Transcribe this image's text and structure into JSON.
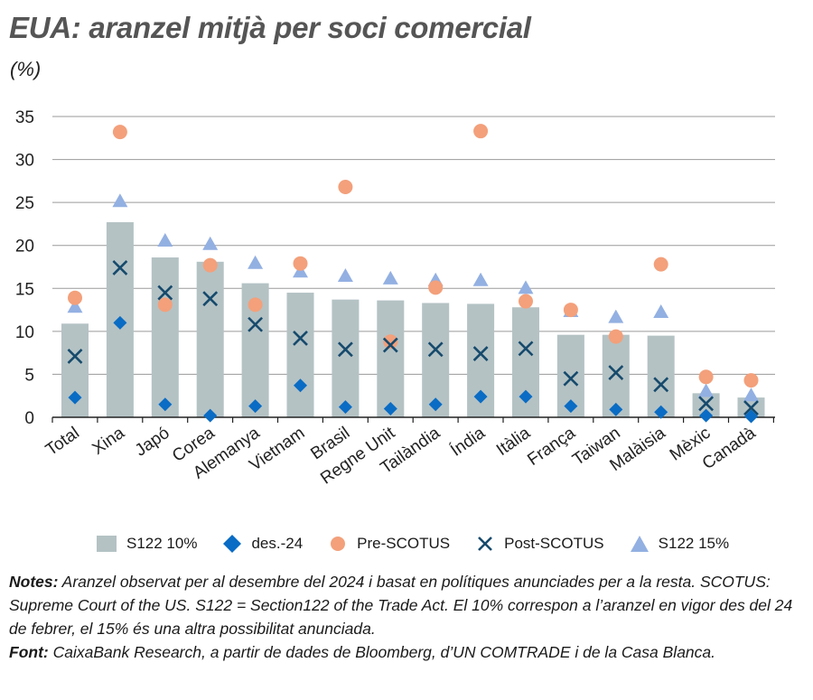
{
  "header": {
    "title": "EUA: aranzel mitjà per soci comercial",
    "subtitle": "(%)"
  },
  "colors": {
    "bar": "#b4c2c4",
    "diamond": "#0a6cc4",
    "circle": "#f3a07b",
    "cross": "#164a6c",
    "triangle": "#93b0e2",
    "grid": "#9a9a9a",
    "axis": "#222222"
  },
  "chart_data": {
    "type": "bar",
    "categories": [
      "Total",
      "Xina",
      "Japó",
      "Corea",
      "Alemanya",
      "Vietnam",
      "Brasil",
      "Regne Unit",
      "Tailàndia",
      "Índia",
      "Itàlia",
      "França",
      "Taiwan",
      "Malàisia",
      "Mèxic",
      "Canadà"
    ],
    "ylim": [
      0,
      35
    ],
    "yticks": [
      0,
      5,
      10,
      15,
      20,
      25,
      30,
      35
    ],
    "grid": true,
    "legend_position": "bottom",
    "series": [
      {
        "name": "S122 10%",
        "kind": "bar",
        "values": [
          10.9,
          22.7,
          18.6,
          18.1,
          15.6,
          14.5,
          13.7,
          13.6,
          13.3,
          13.2,
          12.8,
          9.6,
          9.6,
          9.5,
          2.8,
          2.3
        ]
      },
      {
        "name": "des.-24",
        "kind": "diamond",
        "values": [
          2.3,
          11.0,
          1.5,
          0.2,
          1.3,
          3.7,
          1.2,
          1.0,
          1.5,
          2.4,
          2.4,
          1.3,
          0.9,
          0.6,
          0.2,
          0.1
        ]
      },
      {
        "name": "Pre-SCOTUS",
        "kind": "circle",
        "values": [
          13.9,
          33.2,
          13.1,
          17.7,
          13.1,
          17.9,
          26.8,
          8.8,
          15.1,
          33.3,
          13.5,
          12.5,
          9.4,
          17.8,
          4.7,
          4.3
        ]
      },
      {
        "name": "Post-SCOTUS",
        "kind": "cross",
        "values": [
          7.1,
          17.4,
          14.5,
          13.8,
          10.8,
          9.2,
          7.9,
          8.4,
          7.9,
          7.4,
          8.0,
          4.5,
          5.2,
          3.8,
          1.6,
          1.1
        ]
      },
      {
        "name": "S122 15%",
        "kind": "triangle",
        "values": [
          12.9,
          25.2,
          20.6,
          20.2,
          18.0,
          17.0,
          16.5,
          16.2,
          16.0,
          16.0,
          15.1,
          12.4,
          11.7,
          12.3,
          3.1,
          2.6
        ]
      }
    ]
  },
  "notes": {
    "notes_label": "Notes:",
    "notes_text": "Aranzel observat per al desembre del 2024 i basat en polítiques anunciades per a la resta. SCOTUS: Supreme Court of the US. S122 = Section122 of the Trade Act. El 10% correspon a l’aranzel en vigor des del 24 de febrer, el 15% és una altra possibilitat anunciada.",
    "source_label": "Font:",
    "source_text": "CaixaBank Research, a partir de dades de Bloomberg, d’UN COMTRADE i de la Casa Blanca."
  }
}
